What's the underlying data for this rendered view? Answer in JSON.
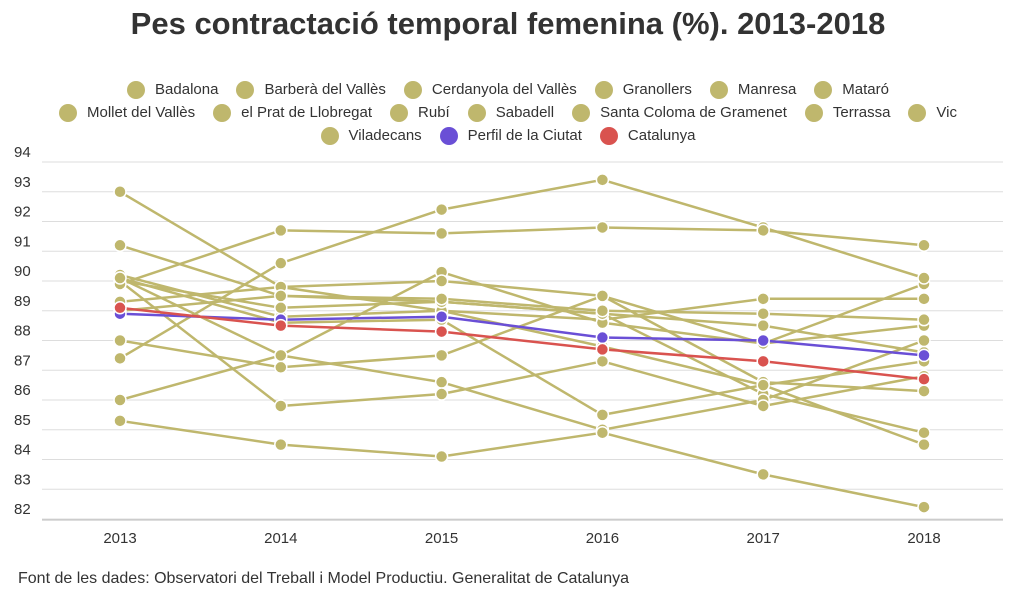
{
  "chart_data": {
    "type": "line",
    "title": "Pes contractació temporal femenina (%). 2013-2018",
    "source": "Font de les dades: Observatori del Treball i Model Productiu. Generalitat de Catalunya",
    "x": [
      "2013",
      "2014",
      "2015",
      "2016",
      "2017",
      "2018"
    ],
    "ylim": [
      82,
      94
    ],
    "yticks": [
      "82",
      "83",
      "84",
      "85",
      "86",
      "87",
      "88",
      "89",
      "90",
      "91",
      "92",
      "93",
      "94"
    ],
    "grid": true,
    "legend_position": "top",
    "colors": {
      "municipality": "#bfb76d",
      "ciutat": "#6a4fd6",
      "catalunya": "#d9534f",
      "grid": "#dddddd"
    },
    "series": [
      {
        "name": "Badalona",
        "values": [
          93.0,
          89.8,
          89.0,
          87.8,
          86.5,
          84.5
        ]
      },
      {
        "name": "Barberà del Vallès",
        "values": [
          91.2,
          89.5,
          89.3,
          88.9,
          86.2,
          84.9
        ]
      },
      {
        "name": "Cerdanyola del Vallès",
        "values": [
          90.2,
          88.8,
          89.0,
          88.7,
          89.4,
          89.4
        ]
      },
      {
        "name": "Granollers",
        "values": [
          90.1,
          87.5,
          90.3,
          88.6,
          87.9,
          89.9
        ]
      },
      {
        "name": "Manresa",
        "values": [
          90.0,
          89.1,
          89.3,
          88.9,
          88.5,
          87.6
        ]
      },
      {
        "name": "Mataró",
        "values": [
          89.3,
          89.8,
          90.0,
          89.5,
          87.9,
          88.5
        ]
      },
      {
        "name": "Mollet del Vallès",
        "values": [
          89.0,
          89.5,
          89.4,
          89.0,
          88.9,
          88.7
        ]
      },
      {
        "name": "el Prat de Llobregat",
        "values": [
          88.0,
          87.1,
          87.5,
          89.5,
          86.6,
          86.3
        ]
      },
      {
        "name": "Rubí",
        "values": [
          87.4,
          90.6,
          92.4,
          93.4,
          91.8,
          90.1
        ]
      },
      {
        "name": "Sabadell",
        "values": [
          86.0,
          87.5,
          86.6,
          85.0,
          86.0,
          88.0
        ]
      },
      {
        "name": "Santa Coloma de Gramenet",
        "values": [
          85.3,
          84.5,
          84.1,
          84.9,
          83.5,
          82.4
        ]
      },
      {
        "name": "Terrassa",
        "values": [
          90.0,
          85.8,
          86.2,
          87.3,
          85.8,
          86.8
        ]
      },
      {
        "name": "Vic",
        "values": [
          89.9,
          91.7,
          91.6,
          91.8,
          91.7,
          91.2
        ]
      },
      {
        "name": "Viladecans",
        "values": [
          90.1,
          88.6,
          88.7,
          85.5,
          86.5,
          87.3
        ]
      },
      {
        "name": "Perfil de la Ciutat",
        "values": [
          88.9,
          88.7,
          88.8,
          88.1,
          88.0,
          87.5
        ]
      },
      {
        "name": "Catalunya",
        "values": [
          89.1,
          88.5,
          88.3,
          87.7,
          87.3,
          86.7
        ]
      }
    ]
  }
}
